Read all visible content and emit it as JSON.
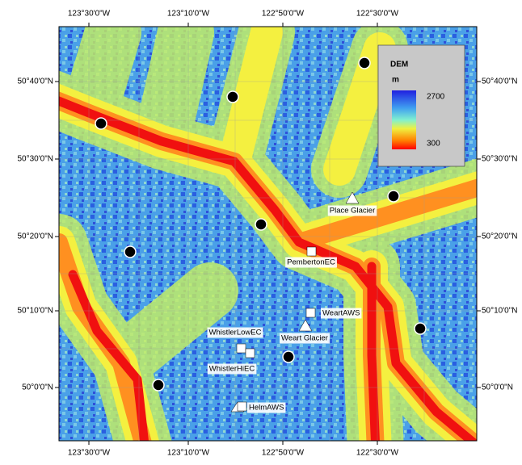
{
  "map": {
    "top_labels": [
      "123°30'0\"W",
      "123°10'0\"W",
      "122°50'0\"W",
      "122°30'0\"W"
    ],
    "bottom_labels": [
      "123°30'0\"W",
      "123°10'0\"W",
      "122°50'0\"W",
      "122°30'0\"W"
    ],
    "left_labels": [
      "50°40'0\"N",
      "50°30'0\"N",
      "50°20'0\"N",
      "50°10'0\"N",
      "50°0'0\"N"
    ],
    "right_labels": [
      "50°40'0\"N",
      "50°30'0\"N",
      "50°20'0\"N",
      "50°10'0\"N",
      "50°0'0\"N"
    ],
    "stations": [
      "Place Glacier",
      "PembertonEC",
      "WeartAWS",
      "Weart Glacier",
      "WhistlerLowEC",
      "WhistlerHiEC",
      "HelmAWS"
    ],
    "legend": {
      "title": "DEM",
      "unit": "m",
      "max": 2700,
      "min": 300
    }
  }
}
